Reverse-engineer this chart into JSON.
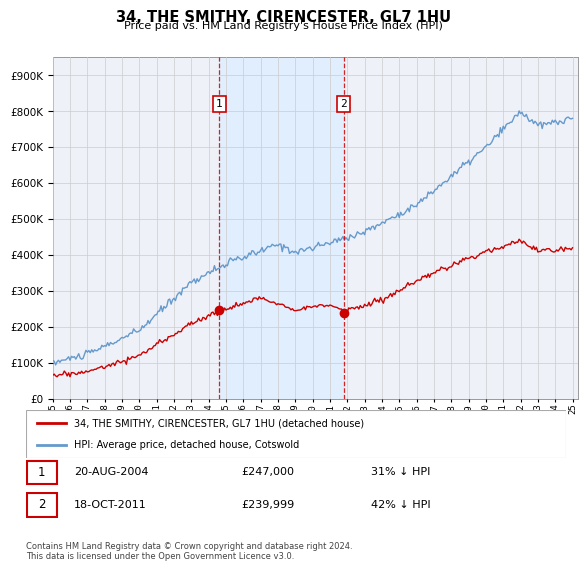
{
  "title": "34, THE SMITHY, CIRENCESTER, GL7 1HU",
  "subtitle": "Price paid vs. HM Land Registry's House Price Index (HPI)",
  "hpi_color": "#6699cc",
  "price_color": "#cc0000",
  "dashed_line_color": "#cc0000",
  "shade_color": "#ddeeff",
  "background_color": "#ffffff",
  "plot_bg_color": "#eef2f8",
  "grid_color": "#cccccc",
  "ylim_max": 950000,
  "yticks": [
    0,
    100000,
    200000,
    300000,
    400000,
    500000,
    600000,
    700000,
    800000,
    900000
  ],
  "t1_year": 2004.625,
  "t2_year": 2011.79,
  "t1_price": 247000,
  "t2_price": 239999,
  "legend_label_red": "34, THE SMITHY, CIRENCESTER, GL7 1HU (detached house)",
  "legend_label_blue": "HPI: Average price, detached house, Cotswold",
  "footer": "Contains HM Land Registry data © Crown copyright and database right 2024.\nThis data is licensed under the Open Government Licence v3.0.",
  "t1_label": "1",
  "t2_label": "2",
  "row1_date": "20-AUG-2004",
  "row1_price": "£247,000",
  "row1_pct": "31% ↓ HPI",
  "row2_date": "18-OCT-2011",
  "row2_price": "£239,999",
  "row2_pct": "42% ↓ HPI"
}
